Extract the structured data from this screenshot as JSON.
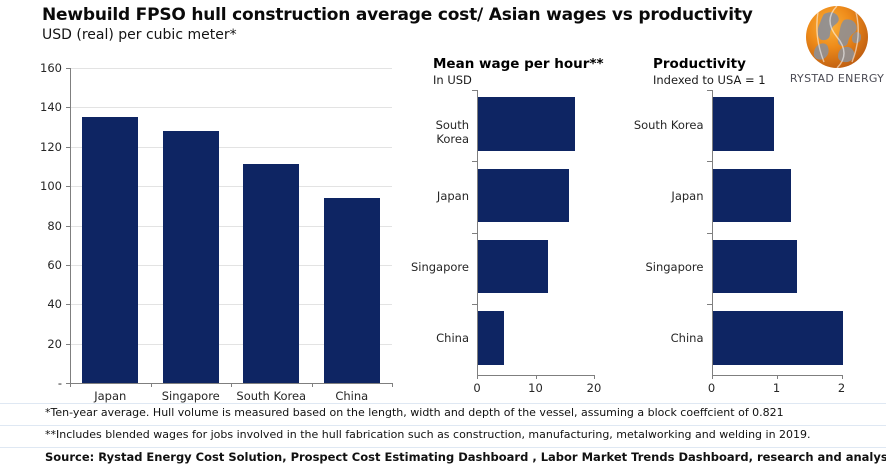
{
  "header": {
    "title": "Newbuild FPSO hull construction average cost/ Asian wages vs productivity",
    "subtitle": "USD (real) per cubic meter*"
  },
  "logo": {
    "text": "RYSTAD ENERGY"
  },
  "colors": {
    "bar_navy": "#0e2563",
    "axis_gray": "#7f7f7f",
    "grid_gray": "#e3e3e3",
    "logo_orange": "#ef8c1a"
  },
  "chart_data": [
    {
      "id": "cost",
      "type": "bar",
      "title": "",
      "subtitle": "",
      "categories": [
        "Japan",
        "Singapore",
        "South Korea",
        "China"
      ],
      "values": [
        135,
        128,
        111,
        94
      ],
      "ylim": [
        0,
        160
      ],
      "yticks": [
        160,
        140,
        120,
        100,
        80,
        60,
        40,
        20,
        0
      ],
      "zero_label": "-",
      "grid": true,
      "legend": "none"
    },
    {
      "id": "wage",
      "type": "barh",
      "title": "Mean wage per hour**",
      "subtitle": "In USD",
      "categories": [
        "South Korea",
        "Japan",
        "Singapore",
        "China"
      ],
      "values": [
        16.5,
        15.5,
        12,
        4.5
      ],
      "xlim": [
        0,
        20
      ],
      "xticks": [
        0,
        10,
        20
      ],
      "grid": false,
      "legend": "none"
    },
    {
      "id": "productivity",
      "type": "barh",
      "title": "Productivity",
      "subtitle": "Indexed to USA = 1",
      "categories": [
        "South Korea",
        "Japan",
        "Singapore",
        "China"
      ],
      "values": [
        0.95,
        1.2,
        1.3,
        2.0
      ],
      "xlim": [
        0,
        2
      ],
      "xticks": [
        0,
        1,
        2
      ],
      "grid": false,
      "legend": "none"
    }
  ],
  "footnotes": [
    "*Ten-year average. Hull volume is measured based on the length, width and depth of the vessel, assuming a block coeffcient of 0.821",
    "**Includes blended wages for jobs involved in the hull fabrication such as construction, manufacturing, metalworking and welding in 2019."
  ],
  "source": "Source: Rystad Energy Cost Solution, Prospect Cost Estimating Dashboard , Labor Market Trends Dashboard, research and analysis"
}
